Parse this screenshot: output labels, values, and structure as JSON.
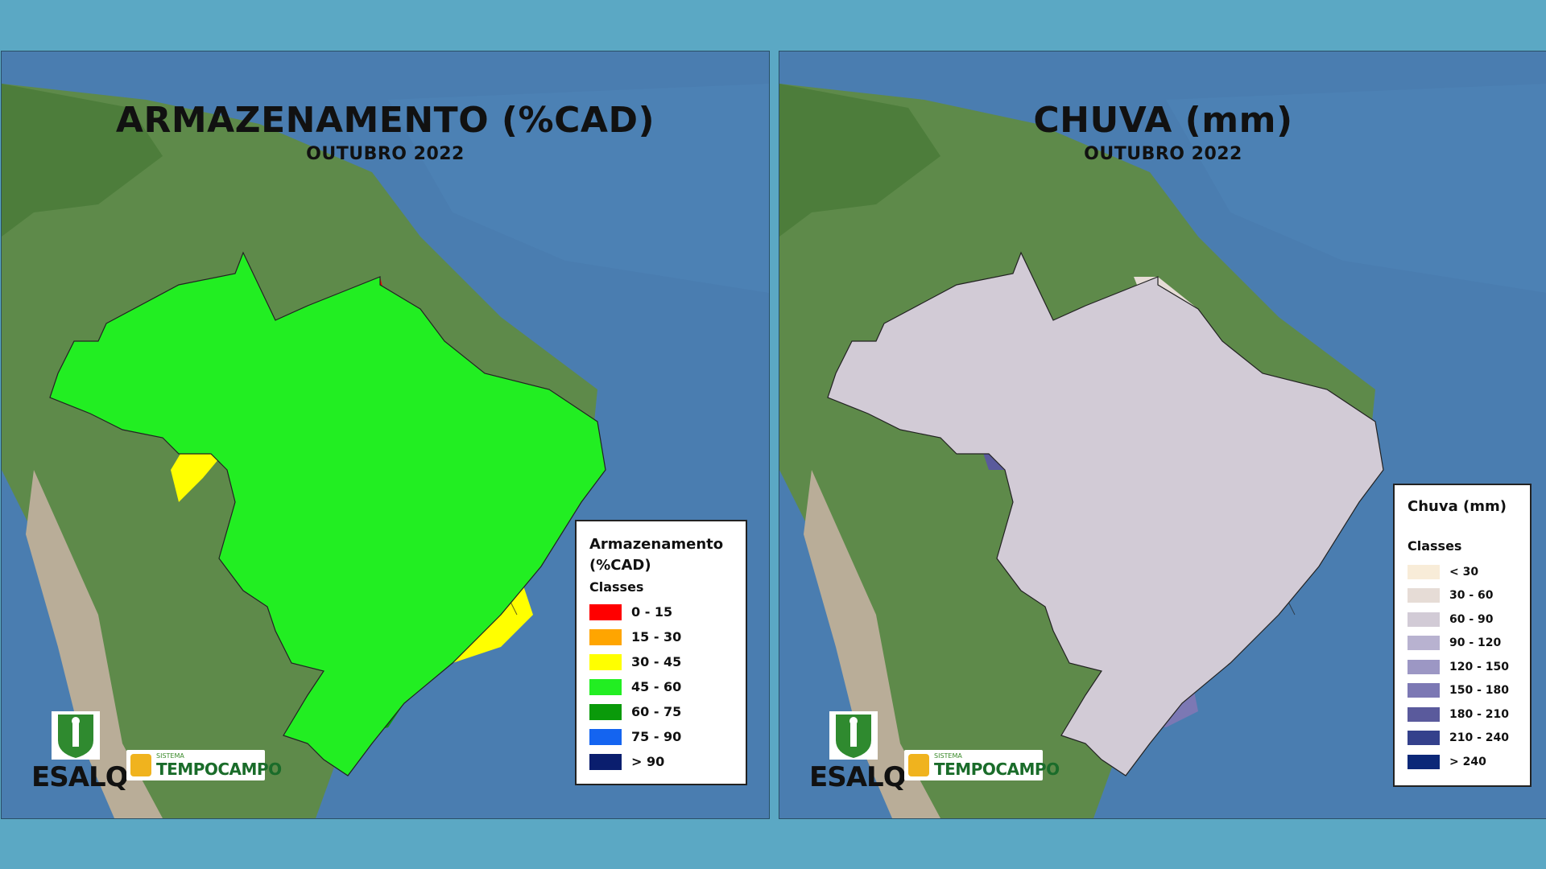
{
  "left_map": {
    "title": "ARMAZENAMENTO (%CAD)",
    "subtitle": "OUTUBRO 2022",
    "legend_title_line1": "Armazenamento",
    "legend_title_line2": "(%CAD)",
    "legend_sub": "Classes",
    "classes": [
      {
        "label": "0 - 15",
        "color": "#ff0000"
      },
      {
        "label": "15 - 30",
        "color": "#ffa500"
      },
      {
        "label": "30 - 45",
        "color": "#ffff00"
      },
      {
        "label": "45 - 60",
        "color": "#22ee22"
      },
      {
        "label": "60 - 75",
        "color": "#0a9a0a"
      },
      {
        "label": "75 - 90",
        "color": "#1464f0"
      },
      {
        "label": "> 90",
        "color": "#0a1e6e"
      }
    ]
  },
  "right_map": {
    "title": "CHUVA (mm)",
    "subtitle": "OUTUBRO 2022",
    "legend_title": "Chuva (mm)",
    "legend_sub": "Classes",
    "classes": [
      {
        "label": "< 30",
        "color": "#f8ecd8"
      },
      {
        "label": "30 - 60",
        "color": "#e6dcd6"
      },
      {
        "label": "60 - 90",
        "color": "#d2cbd6"
      },
      {
        "label": "90 - 120",
        "color": "#b8b2d0"
      },
      {
        "label": "120 - 150",
        "color": "#9c97c4"
      },
      {
        "label": "150 - 180",
        "color": "#7c78b4"
      },
      {
        "label": "180 - 210",
        "color": "#5a5a9c"
      },
      {
        "label": "210 - 240",
        "color": "#34418c"
      },
      {
        "label": "> 240",
        "color": "#0c2878"
      }
    ]
  },
  "logos": {
    "esalq": "ESALQ",
    "sistema": "SISTEMA",
    "tempocampo": "TEMPOCAMPO"
  }
}
